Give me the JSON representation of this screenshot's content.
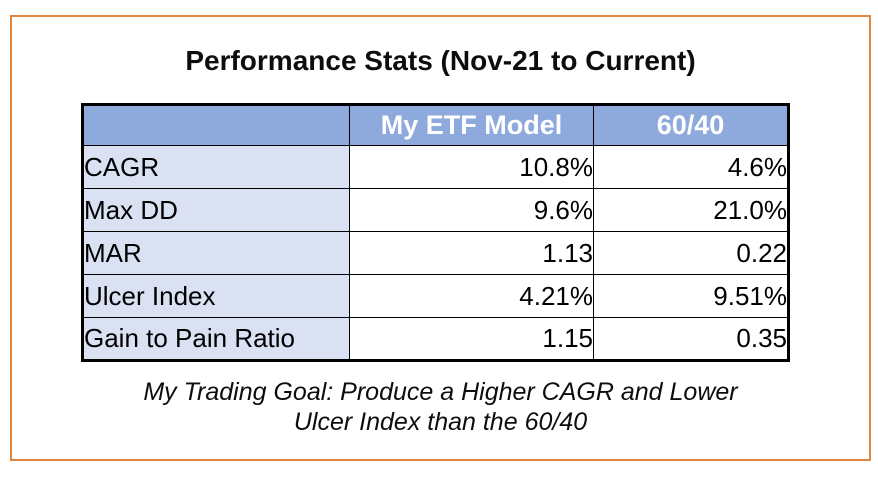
{
  "title": "Performance Stats (Nov-21 to Current)",
  "chart_data": {
    "type": "table",
    "title": "Performance Stats (Nov-21 to Current)",
    "columns": [
      "",
      "My ETF Model",
      "60/40"
    ],
    "rows": [
      {
        "label": "CAGR",
        "values": [
          "10.8%",
          "4.6%"
        ]
      },
      {
        "label": "Max DD",
        "values": [
          "9.6%",
          "21.0%"
        ]
      },
      {
        "label": "MAR",
        "values": [
          "1.13",
          "0.22"
        ]
      },
      {
        "label": "Ulcer Index",
        "values": [
          "4.21%",
          "9.51%"
        ]
      },
      {
        "label": "Gain to Pain Ratio",
        "values": [
          "1.15",
          "0.35"
        ]
      }
    ]
  },
  "note": {
    "line1": "My Trading Goal: Produce a Higher CAGR and Lower",
    "line2": "Ulcer Index than the 60/40"
  },
  "colors": {
    "frame_border": "#E2863F",
    "header_bg": "#8EA9DB",
    "header_text": "#FFFFFF",
    "row_label_bg": "#DAE1F3",
    "table_border": "#000000",
    "value_bg": "#FFFFFF",
    "text": "#000000"
  }
}
